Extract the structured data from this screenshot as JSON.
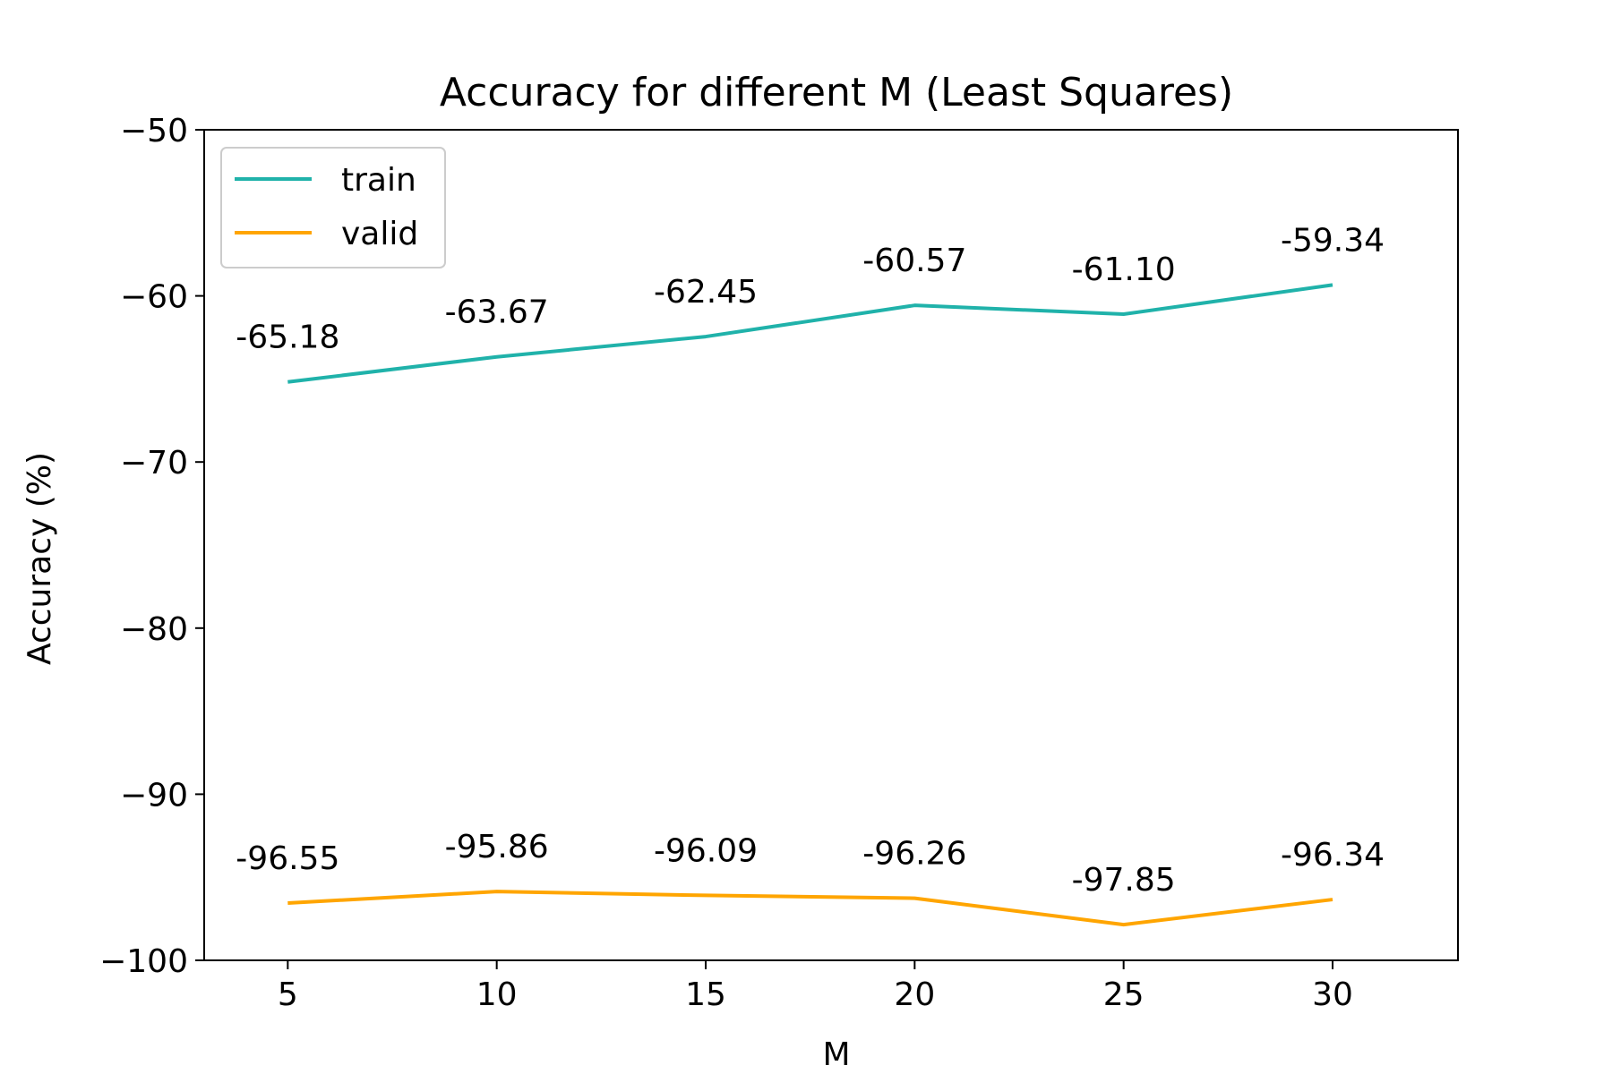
{
  "chart_data": {
    "type": "line",
    "title": "Accuracy for different M (Least Squares)",
    "xlabel": "M",
    "ylabel": "Accuracy (%)",
    "x": [
      5,
      10,
      15,
      20,
      25,
      30
    ],
    "xlim": [
      3,
      33
    ],
    "ylim": [
      -100,
      -50
    ],
    "xticks": [
      5,
      10,
      15,
      20,
      25,
      30
    ],
    "xtick_labels": [
      "5",
      "10",
      "15",
      "20",
      "25",
      "30"
    ],
    "yticks": [
      -100,
      -90,
      -80,
      -70,
      -60,
      -50
    ],
    "ytick_labels": [
      "−100",
      "−90",
      "−80",
      "−70",
      "−60",
      "−50"
    ],
    "grid": false,
    "legend": "top-left",
    "series": [
      {
        "name": "train",
        "color": "#20b2aa",
        "values": [
          -65.18,
          -63.67,
          -62.45,
          -60.57,
          -61.1,
          -59.34
        ],
        "labels": [
          "-65.18",
          "-63.67",
          "-62.45",
          "-60.57",
          "-61.10",
          "-59.34"
        ]
      },
      {
        "name": "valid",
        "color": "#ffa500",
        "values": [
          -96.55,
          -95.86,
          -96.09,
          -96.26,
          -97.85,
          -96.34
        ],
        "labels": [
          "-96.55",
          "-95.86",
          "-96.09",
          "-96.26",
          "-97.85",
          "-96.34"
        ]
      }
    ]
  }
}
